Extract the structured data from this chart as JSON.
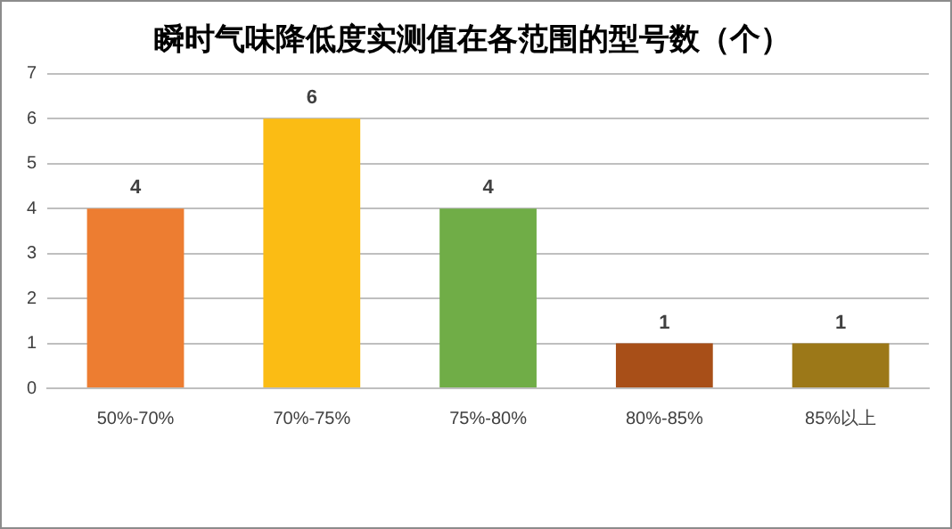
{
  "chart_data": {
    "type": "bar",
    "title": "瞬时气味降低度实测值在各范围的型号数（个）",
    "categories": [
      "50%-70%",
      "70%-75%",
      "75%-80%",
      "80%-85%",
      "85%以上"
    ],
    "values": [
      4,
      6,
      4,
      1,
      1
    ],
    "colors": [
      "#ed7d31",
      "#fbbc14",
      "#70ad47",
      "#a84f18",
      "#9c7818"
    ],
    "ylim": [
      0,
      7
    ],
    "yticks": [
      0,
      1,
      2,
      3,
      4,
      5,
      6,
      7
    ],
    "grid": "y",
    "data_labels": true,
    "legend": false
  }
}
